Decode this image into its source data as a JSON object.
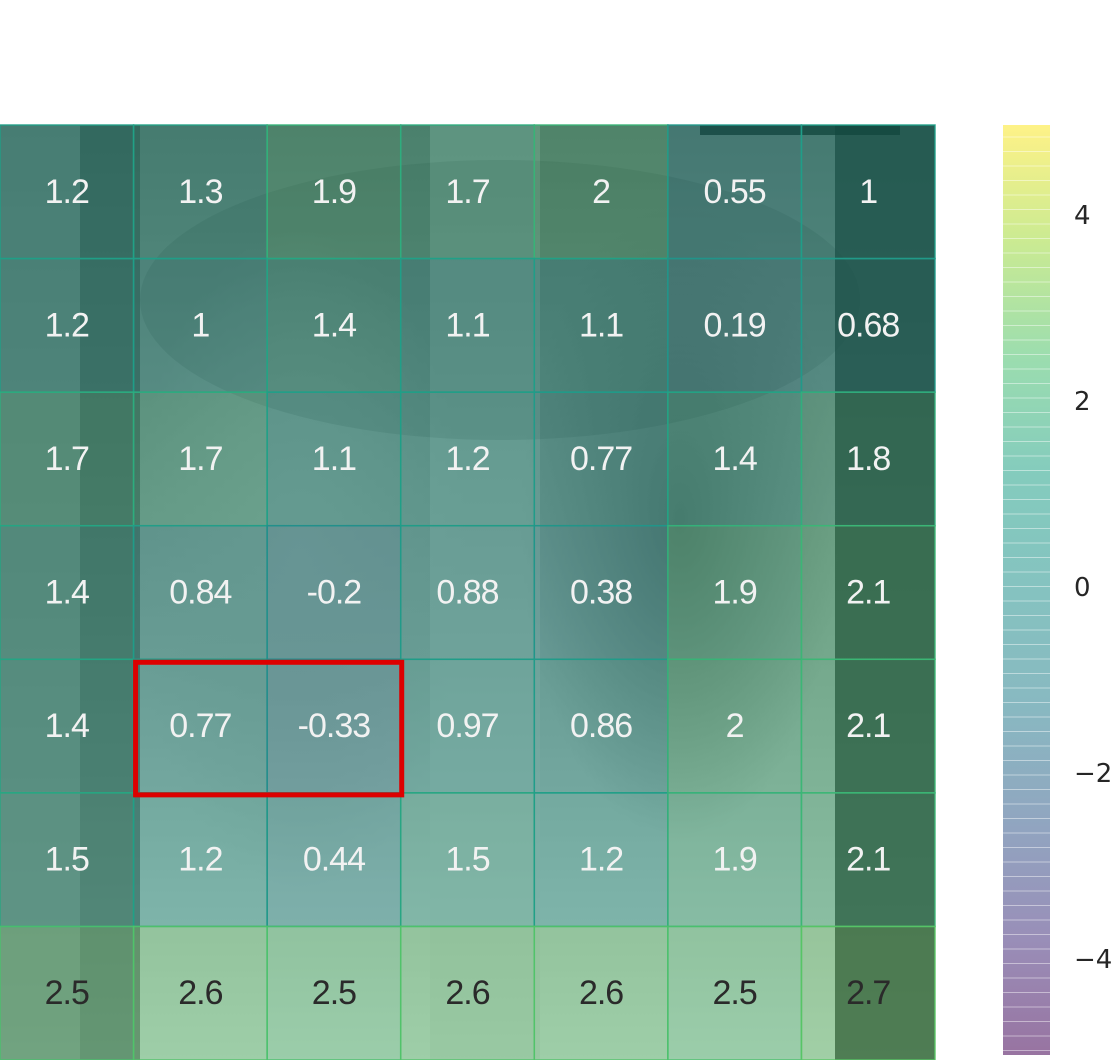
{
  "chart_data": {
    "type": "heatmap",
    "title": "",
    "xlabel": "",
    "ylabel": "",
    "background": "chest x-ray image (grayscale) under a semi-transparent heatmap",
    "colormap": "viridis",
    "color_range": [
      -5,
      5
    ],
    "rows": 7,
    "cols": 7,
    "values": [
      [
        "1.2",
        "1.3",
        "1.9",
        "1.7",
        "2",
        "0.55",
        "1"
      ],
      [
        "1.2",
        "1",
        "1.4",
        "1.1",
        "1.1",
        "0.19",
        "0.68"
      ],
      [
        "1.7",
        "1.7",
        "1.1",
        "1.2",
        "0.77",
        "1.4",
        "1.8"
      ],
      [
        "1.4",
        "0.84",
        "-0.2",
        "0.88",
        "0.38",
        "1.9",
        "2.1"
      ],
      [
        "1.4",
        "0.77",
        "-0.33",
        "0.97",
        "0.86",
        "2",
        "2.1"
      ],
      [
        "1.5",
        "1.2",
        "0.44",
        "1.5",
        "1.2",
        "1.9",
        "2.1"
      ],
      [
        "2.5",
        "2.6",
        "2.5",
        "2.6",
        "2.6",
        "2.5",
        "2.7"
      ]
    ],
    "highlight": {
      "row": 4,
      "col_start": 1,
      "col_end": 2,
      "color": "#dd0000"
    },
    "colorbar": {
      "ticks": [
        4,
        2,
        0,
        -2,
        -4
      ],
      "tick_labels": [
        "4",
        "2",
        "0",
        "−2",
        "−4"
      ]
    }
  }
}
